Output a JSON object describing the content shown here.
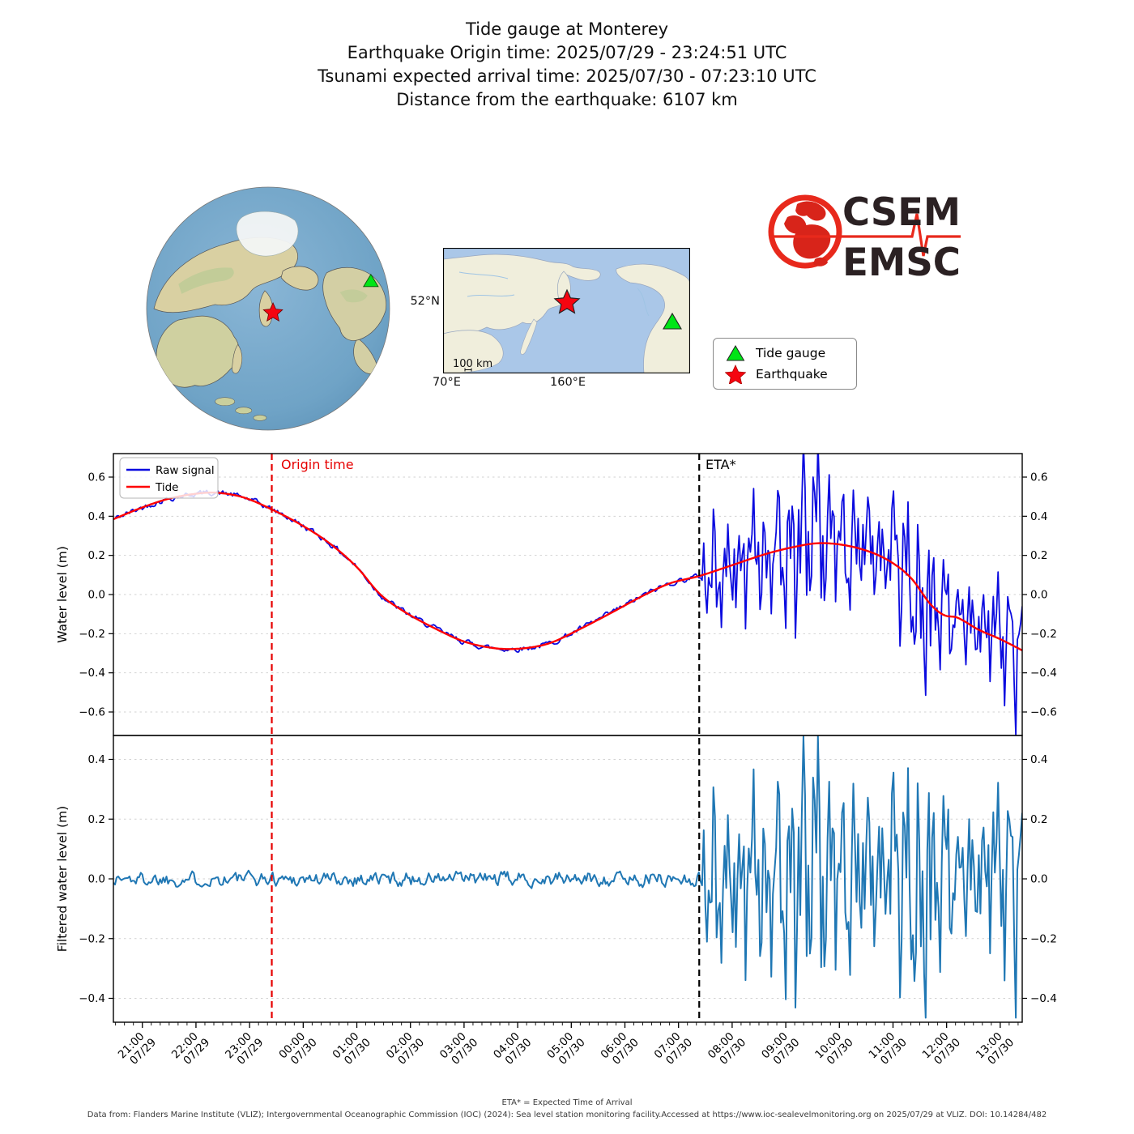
{
  "title": {
    "line1": "Tide gauge at Monterey",
    "line2": "Earthquake Origin time: 2025/07/29 - 23:24:51 UTC",
    "line3": "Tsunami expected arrival time: 2025/07/30 - 07:23:10 UTC",
    "line4": "Distance from the earthquake: 6107 km"
  },
  "logo": {
    "line1": "CSEM",
    "line2": "EMSC"
  },
  "map_legend": {
    "tide_gauge": "Tide gauge",
    "earthquake": "Earthquake"
  },
  "inset_map": {
    "lat_label": "52°N",
    "lon_label_1": "70°E",
    "lon_label_2": "160°E",
    "scale_label": "100 km"
  },
  "footer": {
    "eta_note": "ETA* = Expected Time of Arrival",
    "source": "Data from: Flanders Marine Institute (VLIZ); Intergovernmental Oceanographic Commission (IOC) (2024): Sea level station monitoring facility.Accessed at https://www.ioc-sealevelmonitoring.org on 2025/07/29 at VLIZ. DOI: 10.14284/482"
  },
  "chart_data": {
    "type": "line",
    "x_axis": {
      "unit": "time UTC",
      "reference": "hours relative to 2025/07/30 00:00 UTC",
      "start_h": -3.54,
      "end_h": 13.41,
      "ticks": [
        {
          "h": -3,
          "time": "21:00",
          "date": "07/29"
        },
        {
          "h": -2,
          "time": "22:00",
          "date": "07/29"
        },
        {
          "h": -1,
          "time": "23:00",
          "date": "07/29"
        },
        {
          "h": 0,
          "time": "00:00",
          "date": "07/30"
        },
        {
          "h": 1,
          "time": "01:00",
          "date": "07/30"
        },
        {
          "h": 2,
          "time": "02:00",
          "date": "07/30"
        },
        {
          "h": 3,
          "time": "03:00",
          "date": "07/30"
        },
        {
          "h": 4,
          "time": "04:00",
          "date": "07/30"
        },
        {
          "h": 5,
          "time": "05:00",
          "date": "07/30"
        },
        {
          "h": 6,
          "time": "06:00",
          "date": "07/30"
        },
        {
          "h": 7,
          "time": "07:00",
          "date": "07/30"
        },
        {
          "h": 8,
          "time": "08:00",
          "date": "07/30"
        },
        {
          "h": 9,
          "time": "09:00",
          "date": "07/30"
        },
        {
          "h": 10,
          "time": "10:00",
          "date": "07/30"
        },
        {
          "h": 11,
          "time": "11:00",
          "date": "07/30"
        },
        {
          "h": 12,
          "time": "12:00",
          "date": "07/30"
        },
        {
          "h": 13,
          "time": "13:00",
          "date": "07/30"
        }
      ]
    },
    "panels": [
      {
        "name": "water_level",
        "ylabel": "Water level (m)",
        "ylim": [
          -0.72,
          0.72
        ],
        "yticks": [
          0.6,
          0.4,
          0.2,
          0.0,
          -0.2,
          -0.4,
          -0.6
        ],
        "series": [
          "raw",
          "tide"
        ]
      },
      {
        "name": "filtered_water_level",
        "ylabel": "Filtered water level (m)",
        "ylim": [
          -0.48,
          0.48
        ],
        "yticks": [
          0.4,
          0.2,
          0.0,
          -0.2,
          -0.4
        ],
        "series": [
          "filtered"
        ]
      }
    ],
    "events": {
      "origin": {
        "h": -0.586,
        "label": "Origin time",
        "color": "#e60000"
      },
      "eta": {
        "h": 7.386,
        "label": "ETA*",
        "color": "#000000"
      }
    },
    "legend": [
      "Raw signal",
      "Tide"
    ],
    "tide_keypoints": [
      [
        -3.54,
        0.385
      ],
      [
        -3.0,
        0.445
      ],
      [
        -2.5,
        0.49
      ],
      [
        -2.0,
        0.515
      ],
      [
        -1.6,
        0.52
      ],
      [
        -1.1,
        0.495
      ],
      [
        -0.55,
        0.43
      ],
      [
        0.0,
        0.35
      ],
      [
        0.5,
        0.26
      ],
      [
        1.0,
        0.14
      ],
      [
        1.44,
        0.0
      ],
      [
        1.9,
        -0.09
      ],
      [
        2.4,
        -0.165
      ],
      [
        3.0,
        -0.24
      ],
      [
        3.6,
        -0.275
      ],
      [
        4.1,
        -0.275
      ],
      [
        4.6,
        -0.248
      ],
      [
        5.1,
        -0.185
      ],
      [
        5.7,
        -0.1
      ],
      [
        6.38,
        0.0
      ],
      [
        6.85,
        0.058
      ],
      [
        7.39,
        0.095
      ],
      [
        8.0,
        0.15
      ],
      [
        8.6,
        0.205
      ],
      [
        9.1,
        0.24
      ],
      [
        9.6,
        0.262
      ],
      [
        10.1,
        0.252
      ],
      [
        10.6,
        0.215
      ],
      [
        11.0,
        0.16
      ],
      [
        11.35,
        0.08
      ],
      [
        11.7,
        -0.05
      ],
      [
        11.95,
        -0.105
      ],
      [
        12.2,
        -0.118
      ],
      [
        12.6,
        -0.18
      ],
      [
        13.0,
        -0.228
      ],
      [
        13.41,
        -0.285
      ]
    ],
    "tsunami_envelope": [
      [
        7.386,
        0.0
      ],
      [
        7.5,
        0.18
      ],
      [
        7.75,
        0.3
      ],
      [
        8.1,
        0.28
      ],
      [
        8.55,
        0.37
      ],
      [
        9.0,
        0.33
      ],
      [
        9.35,
        0.37
      ],
      [
        9.8,
        0.31
      ],
      [
        10.3,
        0.34
      ],
      [
        10.8,
        0.33
      ],
      [
        11.2,
        0.3
      ],
      [
        11.5,
        0.4
      ],
      [
        11.85,
        0.33
      ],
      [
        12.3,
        0.31
      ],
      [
        12.8,
        0.28
      ],
      [
        13.41,
        0.27
      ]
    ],
    "noise": {
      "raw_amp": 0.013,
      "filtered_amp": 0.022
    },
    "oscillation": {
      "period1": 0.24,
      "phase1": 0.8,
      "weight1": 0.55,
      "period2": 0.093,
      "phase2": 2.2,
      "weight2": 0.45,
      "random_weight": 0.5,
      "slow_period": 1.9,
      "slow_depth": 0.25,
      "sample_step_h": 0.03,
      "clip_filtered": [
        -0.465,
        0.477
      ]
    },
    "seeds": {
      "raw": 42,
      "filtered": 1337,
      "osc": 7
    },
    "colors": {
      "raw": "#0b0bdf",
      "tide": "#ff0000",
      "filtered": "#1f77b4",
      "grid": "#d2d2d2",
      "spine": "#000000"
    }
  },
  "globe": {
    "marker_earthquake": "earthquake-star",
    "marker_gauge": "tide-gauge-triangle",
    "marker_colors": {
      "gauge": "#00e516",
      "earthquake": "#f50510"
    }
  }
}
